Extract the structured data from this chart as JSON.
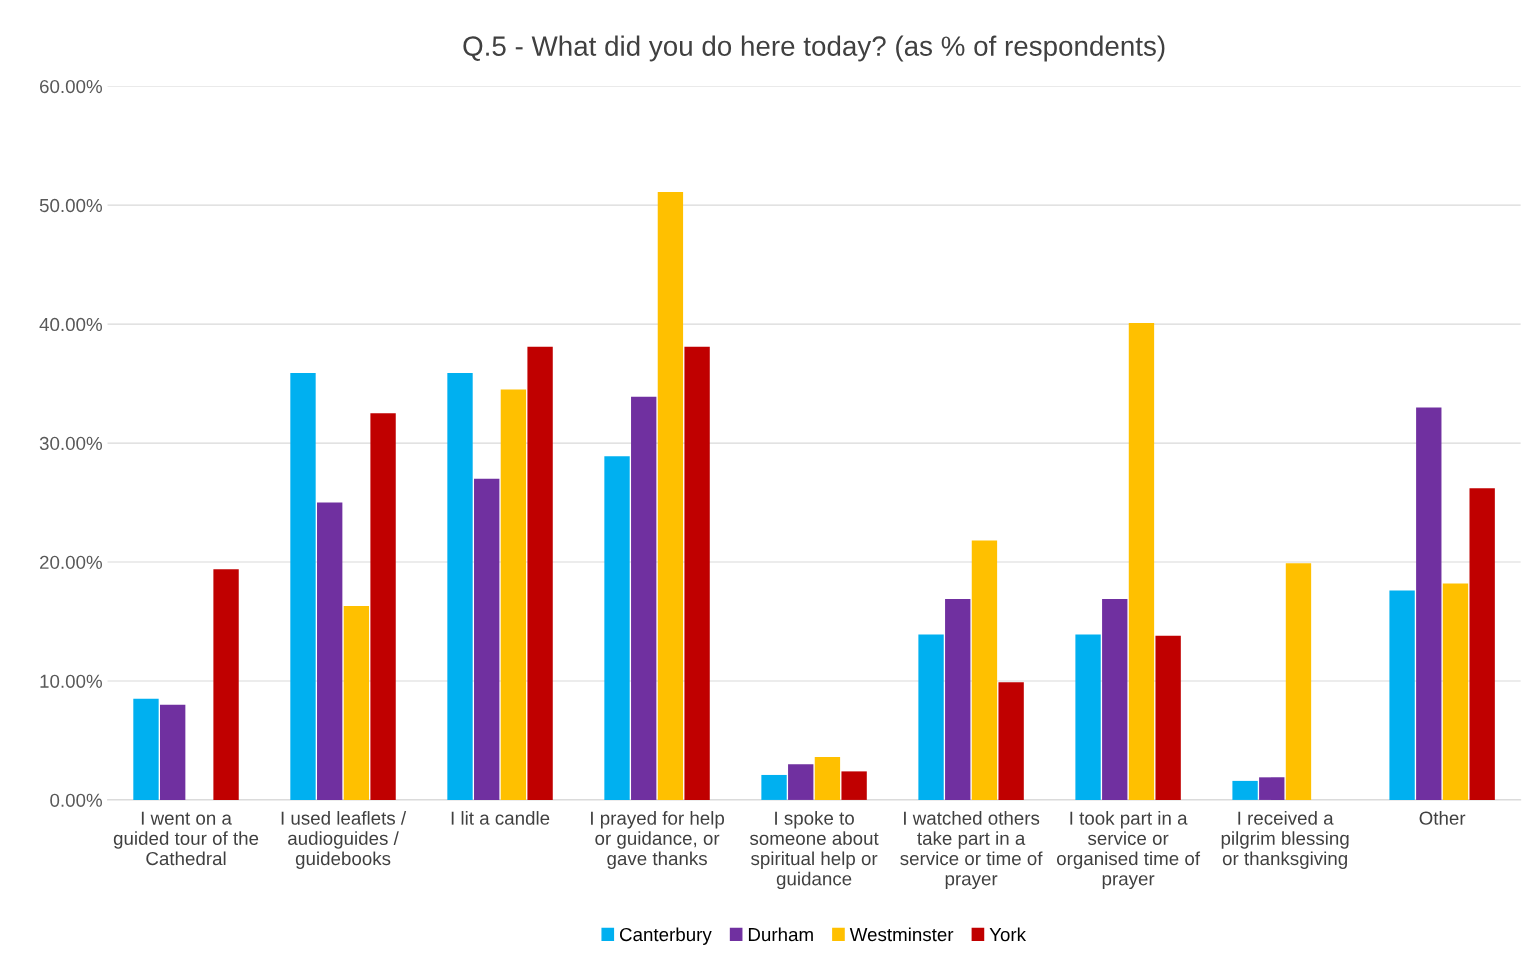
{
  "chart_data": {
    "type": "bar",
    "title": "Q.5 - What did you do here today? (as % of respondents)",
    "categories": [
      "I went on a\nguided tour of the\nCathedral",
      "I used leaflets /\naudioguides /\nguidebooks",
      "I lit a candle",
      "I prayed for help\nor guidance, or\ngave thanks",
      "I spoke to\nsomeone about\nspiritual help or\nguidance",
      "I watched others\ntake part in a\nservice or time of\nprayer",
      "I took part in a\nservice or\norganised time of\nprayer",
      "I received a\npilgrim blessing\nor thanksgiving",
      "Other"
    ],
    "series": [
      {
        "name": "Canterbury",
        "color": "#00b0f0",
        "values": [
          8.5,
          35.9,
          35.9,
          28.9,
          2.1,
          13.9,
          13.9,
          1.6,
          17.6
        ]
      },
      {
        "name": "Durham",
        "color": "#7030a0",
        "values": [
          8.0,
          25.0,
          27.0,
          33.9,
          3.0,
          16.9,
          16.9,
          1.9,
          33.0
        ]
      },
      {
        "name": "Westminster",
        "color": "#ffc000",
        "values": [
          null,
          16.3,
          34.5,
          51.1,
          3.6,
          21.8,
          40.1,
          19.9,
          18.2
        ]
      },
      {
        "name": "York",
        "color": "#c00000",
        "values": [
          19.4,
          32.5,
          38.1,
          38.1,
          2.4,
          9.9,
          13.8,
          null,
          26.2
        ]
      }
    ],
    "ylim": [
      0,
      60
    ],
    "yticks": [
      {
        "value": 0,
        "label": "0.00%"
      },
      {
        "value": 10,
        "label": "10.00%"
      },
      {
        "value": 20,
        "label": "20.00%"
      },
      {
        "value": 30,
        "label": "30.00%"
      },
      {
        "value": 40,
        "label": "40.00%"
      },
      {
        "value": 50,
        "label": "50.00%"
      },
      {
        "value": 60,
        "label": "60.00%"
      }
    ],
    "grid": "y",
    "legend": "bottom"
  }
}
